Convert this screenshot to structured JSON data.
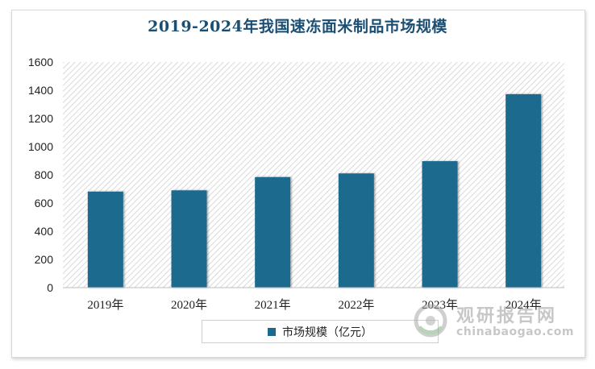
{
  "chart_data": {
    "type": "bar",
    "title": "2019-2024年我国速冻面米制品市场规模",
    "categories": [
      "2019年",
      "2020年",
      "2021年",
      "2022年",
      "2023年",
      "2024年"
    ],
    "series": [
      {
        "name": "市场规模（亿元）",
        "values": [
          681,
          690,
          784,
          810,
          897,
          1372
        ]
      }
    ],
    "ylim": [
      0,
      1600
    ],
    "yticks": [
      0,
      200,
      400,
      600,
      800,
      1000,
      1200,
      1400,
      1600
    ],
    "xlabel": "",
    "ylabel": "",
    "legend_position": "bottom",
    "bar_color": "#1b6a8e",
    "plot_background": "hatched-gray"
  },
  "watermark": {
    "text_cn": "观研报告网",
    "text_en": "chinabaogao.com"
  }
}
